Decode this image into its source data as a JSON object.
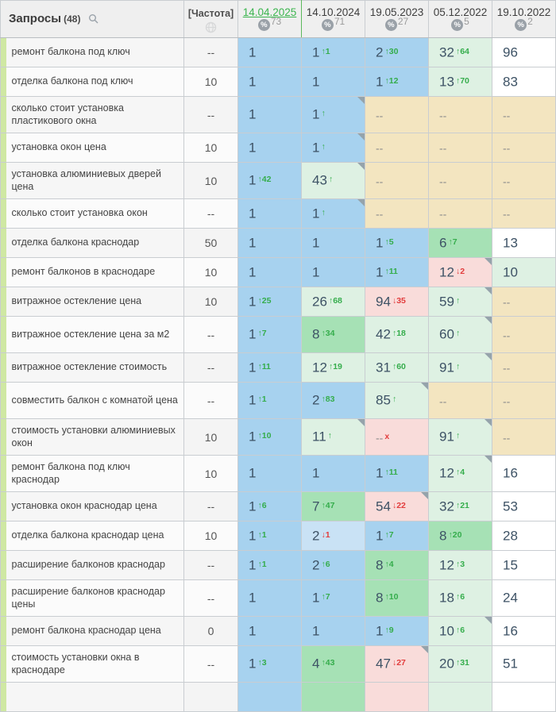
{
  "header": {
    "queries_label": "Запросы",
    "queries_count": "(48)",
    "frequency_label": "[Частота]",
    "dates": [
      {
        "label": "14.04.2025",
        "coverage": "73",
        "active": true
      },
      {
        "label": "14.10.2024",
        "coverage": "71",
        "active": false
      },
      {
        "label": "19.05.2023",
        "coverage": "27",
        "active": false
      },
      {
        "label": "05.12.2022",
        "coverage": "5",
        "active": false
      },
      {
        "label": "19.10.2022",
        "coverage": "2",
        "active": false
      }
    ]
  },
  "colors": {
    "accent_green": "#3cb54f",
    "change_up": "#35ad4c",
    "change_down": "#e23d3d",
    "cell_top": "#a7d2ef",
    "cell_top_faded": "#c9e2f5",
    "cell_top10": "#a6e1b5",
    "cell_improved": "#def1e3",
    "cell_declined": "#f9dcda",
    "cell_no_data": "#f3e5c0",
    "group_strip": "#cfe8a3"
  },
  "rows": [
    {
      "query": "ремонт балкона под ключ",
      "freq": "--",
      "lines": 1,
      "cells": [
        {
          "v": "1",
          "bg": "b"
        },
        {
          "v": "1",
          "chg": "↑1",
          "cc": "g",
          "bg": "b"
        },
        {
          "v": "2",
          "chg": "↑30",
          "cc": "g",
          "bg": "b"
        },
        {
          "v": "32",
          "chg": "↑64",
          "cc": "g",
          "bg": "lg"
        },
        {
          "v": "96",
          "bg": "w"
        }
      ]
    },
    {
      "query": "отделка балкона под ключ",
      "freq": "10",
      "lines": 1,
      "cells": [
        {
          "v": "1",
          "bg": "b"
        },
        {
          "v": "1",
          "bg": "b"
        },
        {
          "v": "1",
          "chg": "↑12",
          "cc": "g",
          "bg": "b"
        },
        {
          "v": "13",
          "chg": "↑70",
          "cc": "g",
          "bg": "lg"
        },
        {
          "v": "83",
          "bg": "w"
        }
      ]
    },
    {
      "query": "сколько стоит установка пластикового окна",
      "freq": "--",
      "lines": 2,
      "cells": [
        {
          "v": "1",
          "bg": "b"
        },
        {
          "v": "1",
          "chg": "↑",
          "cc": "g",
          "bg": "b",
          "fold": true
        },
        {
          "v": "--",
          "bg": "be"
        },
        {
          "v": "--",
          "bg": "be"
        },
        {
          "v": "--",
          "bg": "be"
        }
      ]
    },
    {
      "query": "установка окон цена",
      "freq": "10",
      "lines": 1,
      "cells": [
        {
          "v": "1",
          "bg": "b"
        },
        {
          "v": "1",
          "chg": "↑",
          "cc": "g",
          "bg": "b",
          "fold": true
        },
        {
          "v": "--",
          "bg": "be"
        },
        {
          "v": "--",
          "bg": "be"
        },
        {
          "v": "--",
          "bg": "be"
        }
      ]
    },
    {
      "query": "установка алюминиевых дверей цена",
      "freq": "10",
      "lines": 2,
      "cells": [
        {
          "v": "1",
          "chg": "↑42",
          "cc": "g",
          "bg": "b"
        },
        {
          "v": "43",
          "chg": "↑",
          "cc": "g",
          "bg": "lg",
          "fold": true
        },
        {
          "v": "--",
          "bg": "be"
        },
        {
          "v": "--",
          "bg": "be"
        },
        {
          "v": "--",
          "bg": "be"
        }
      ]
    },
    {
      "query": "сколько стоит установка окон",
      "freq": "--",
      "lines": 1,
      "cells": [
        {
          "v": "1",
          "bg": "b"
        },
        {
          "v": "1",
          "chg": "↑",
          "cc": "g",
          "bg": "b",
          "fold": true
        },
        {
          "v": "--",
          "bg": "be"
        },
        {
          "v": "--",
          "bg": "be"
        },
        {
          "v": "--",
          "bg": "be"
        }
      ]
    },
    {
      "query": "отделка балкона краснодар",
      "freq": "50",
      "lines": 1,
      "cells": [
        {
          "v": "1",
          "bg": "b"
        },
        {
          "v": "1",
          "bg": "b"
        },
        {
          "v": "1",
          "chg": "↑5",
          "cc": "g",
          "bg": "b"
        },
        {
          "v": "6",
          "chg": "↑7",
          "cc": "g",
          "bg": "g"
        },
        {
          "v": "13",
          "bg": "w"
        }
      ]
    },
    {
      "query": "ремонт балконов в краснодаре",
      "freq": "10",
      "lines": 1,
      "cells": [
        {
          "v": "1",
          "bg": "b"
        },
        {
          "v": "1",
          "bg": "b"
        },
        {
          "v": "1",
          "chg": "↑11",
          "cc": "g",
          "bg": "b"
        },
        {
          "v": "12",
          "chg": "↓2",
          "cc": "r",
          "bg": "p",
          "fold": true
        },
        {
          "v": "10",
          "bg": "lg"
        }
      ]
    },
    {
      "query": "витражное остекление цена",
      "freq": "10",
      "lines": 1,
      "cells": [
        {
          "v": "1",
          "chg": "↑25",
          "cc": "g",
          "bg": "b"
        },
        {
          "v": "26",
          "chg": "↑68",
          "cc": "g",
          "bg": "lg"
        },
        {
          "v": "94",
          "chg": "↓35",
          "cc": "r",
          "bg": "p"
        },
        {
          "v": "59",
          "chg": "↑",
          "cc": "g",
          "bg": "lg",
          "fold": true
        },
        {
          "v": "--",
          "bg": "be"
        }
      ]
    },
    {
      "query": "витражное остекление цена за м2",
      "freq": "--",
      "lines": 2,
      "cells": [
        {
          "v": "1",
          "chg": "↑7",
          "cc": "g",
          "bg": "b"
        },
        {
          "v": "8",
          "chg": "↑34",
          "cc": "g",
          "bg": "g"
        },
        {
          "v": "42",
          "chg": "↑18",
          "cc": "g",
          "bg": "lg"
        },
        {
          "v": "60",
          "chg": "↑",
          "cc": "g",
          "bg": "lg",
          "fold": true
        },
        {
          "v": "--",
          "bg": "be"
        }
      ]
    },
    {
      "query": "витражное остекление стоимость",
      "freq": "--",
      "lines": 1,
      "cells": [
        {
          "v": "1",
          "chg": "↑11",
          "cc": "g",
          "bg": "b"
        },
        {
          "v": "12",
          "chg": "↑19",
          "cc": "g",
          "bg": "lg"
        },
        {
          "v": "31",
          "chg": "↑60",
          "cc": "g",
          "bg": "lg"
        },
        {
          "v": "91",
          "chg": "↑",
          "cc": "g",
          "bg": "lg",
          "fold": true
        },
        {
          "v": "--",
          "bg": "be"
        }
      ]
    },
    {
      "query": "совместить балкон с комнатой цена",
      "freq": "--",
      "lines": 2,
      "cells": [
        {
          "v": "1",
          "chg": "↑1",
          "cc": "g",
          "bg": "b"
        },
        {
          "v": "2",
          "chg": "↑83",
          "cc": "g",
          "bg": "b"
        },
        {
          "v": "85",
          "chg": "↑",
          "cc": "g",
          "bg": "lg",
          "fold": true
        },
        {
          "v": "--",
          "bg": "be"
        },
        {
          "v": "--",
          "bg": "be"
        }
      ]
    },
    {
      "query": "стоимость установки алюминиевых окон",
      "freq": "10",
      "lines": 2,
      "cells": [
        {
          "v": "1",
          "chg": "↑10",
          "cc": "g",
          "bg": "b"
        },
        {
          "v": "11",
          "chg": "↑",
          "cc": "g",
          "bg": "lg",
          "fold": true
        },
        {
          "v": "--",
          "chg": "x",
          "cc": "r",
          "bg": "p"
        },
        {
          "v": "91",
          "chg": "↑",
          "cc": "g",
          "bg": "lg",
          "fold": true
        },
        {
          "v": "--",
          "bg": "be"
        }
      ]
    },
    {
      "query": "ремонт балкона под ключ краснодар",
      "freq": "10",
      "lines": 2,
      "cells": [
        {
          "v": "1",
          "bg": "b"
        },
        {
          "v": "1",
          "bg": "b"
        },
        {
          "v": "1",
          "chg": "↑11",
          "cc": "g",
          "bg": "b"
        },
        {
          "v": "12",
          "chg": "↑4",
          "cc": "g",
          "bg": "lg",
          "fold": true
        },
        {
          "v": "16",
          "bg": "w"
        }
      ]
    },
    {
      "query": "установка окон краснодар цена",
      "freq": "--",
      "lines": 1,
      "cells": [
        {
          "v": "1",
          "chg": "↑6",
          "cc": "g",
          "bg": "b"
        },
        {
          "v": "7",
          "chg": "↑47",
          "cc": "g",
          "bg": "g"
        },
        {
          "v": "54",
          "chg": "↓22",
          "cc": "r",
          "bg": "p",
          "fold": true
        },
        {
          "v": "32",
          "chg": "↑21",
          "cc": "g",
          "bg": "lg"
        },
        {
          "v": "53",
          "bg": "w"
        }
      ]
    },
    {
      "query": "отделка балкона краснодар цена",
      "freq": "10",
      "lines": 1,
      "cells": [
        {
          "v": "1",
          "chg": "↑1",
          "cc": "g",
          "bg": "b"
        },
        {
          "v": "2",
          "chg": "↓1",
          "cc": "r",
          "bg": "lb"
        },
        {
          "v": "1",
          "chg": "↑7",
          "cc": "g",
          "bg": "b"
        },
        {
          "v": "8",
          "chg": "↑20",
          "cc": "g",
          "bg": "g"
        },
        {
          "v": "28",
          "bg": "w"
        }
      ]
    },
    {
      "query": "расширение балконов краснодар",
      "freq": "--",
      "lines": 1,
      "cells": [
        {
          "v": "1",
          "chg": "↑1",
          "cc": "g",
          "bg": "b"
        },
        {
          "v": "2",
          "chg": "↑6",
          "cc": "g",
          "bg": "b"
        },
        {
          "v": "8",
          "chg": "↑4",
          "cc": "g",
          "bg": "g"
        },
        {
          "v": "12",
          "chg": "↑3",
          "cc": "g",
          "bg": "lg"
        },
        {
          "v": "15",
          "bg": "w"
        }
      ]
    },
    {
      "query": "расширение балконов краснодар цены",
      "freq": "--",
      "lines": 2,
      "cells": [
        {
          "v": "1",
          "bg": "b"
        },
        {
          "v": "1",
          "chg": "↑7",
          "cc": "g",
          "bg": "b"
        },
        {
          "v": "8",
          "chg": "↑10",
          "cc": "g",
          "bg": "g"
        },
        {
          "v": "18",
          "chg": "↑6",
          "cc": "g",
          "bg": "lg"
        },
        {
          "v": "24",
          "bg": "w"
        }
      ]
    },
    {
      "query": "ремонт балкона краснодар цена",
      "freq": "0",
      "lines": 1,
      "cells": [
        {
          "v": "1",
          "bg": "b"
        },
        {
          "v": "1",
          "bg": "b"
        },
        {
          "v": "1",
          "chg": "↑9",
          "cc": "g",
          "bg": "b"
        },
        {
          "v": "10",
          "chg": "↑6",
          "cc": "g",
          "bg": "lg",
          "fold": true
        },
        {
          "v": "16",
          "bg": "w"
        }
      ]
    },
    {
      "query": "стоимость установки окна в краснодаре",
      "freq": "--",
      "lines": 2,
      "cells": [
        {
          "v": "1",
          "chg": "↑3",
          "cc": "g",
          "bg": "b"
        },
        {
          "v": "4",
          "chg": "↑43",
          "cc": "g",
          "bg": "g"
        },
        {
          "v": "47",
          "chg": "↓27",
          "cc": "r",
          "bg": "p",
          "fold": true
        },
        {
          "v": "20",
          "chg": "↑31",
          "cc": "g",
          "bg": "lg"
        },
        {
          "v": "51",
          "bg": "w"
        }
      ]
    }
  ],
  "partial_row": {
    "cells": [
      "b",
      "g",
      "p",
      "lg",
      "w"
    ]
  }
}
